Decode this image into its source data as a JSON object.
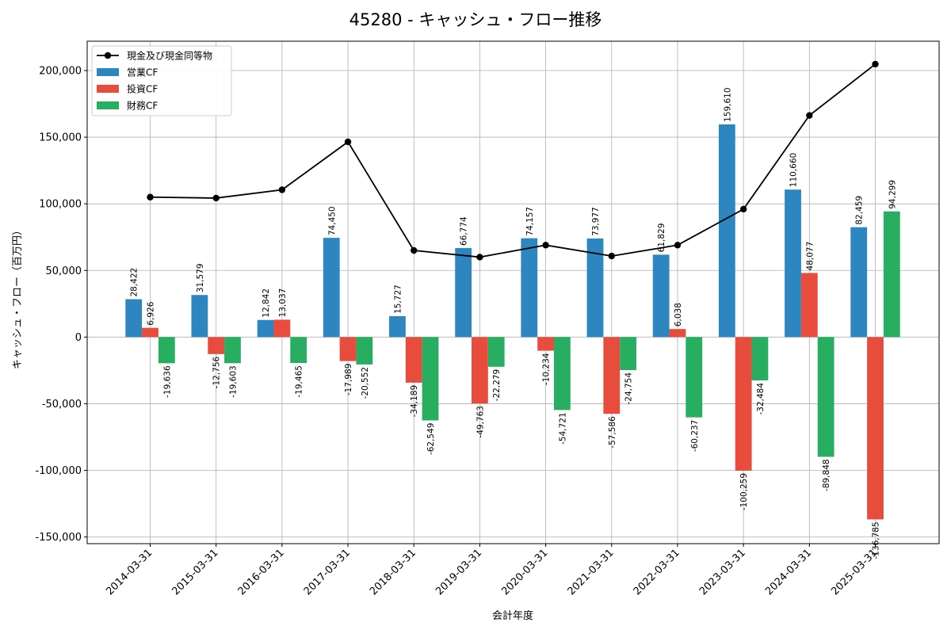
{
  "chart_data": {
    "type": "bar",
    "title": "45280 - キャッシュ・フロー推移",
    "xlabel": "会計年度",
    "ylabel": "キャッシュ・フロー（百万円）",
    "ylim": [
      -155000,
      222000
    ],
    "yticks": [
      -150000,
      -100000,
      -50000,
      0,
      50000,
      100000,
      150000,
      200000
    ],
    "ytick_labels": [
      "-150,000",
      "-100,000",
      "-50,000",
      "0",
      "50,000",
      "100,000",
      "150,000",
      "200,000"
    ],
    "grid": true,
    "legend_position": "top-left",
    "categories": [
      "2014-03-31",
      "2015-03-31",
      "2016-03-31",
      "2017-03-31",
      "2018-03-31",
      "2019-03-31",
      "2020-03-31",
      "2021-03-31",
      "2022-03-31",
      "2023-03-31",
      "2024-03-31",
      "2025-03-31"
    ],
    "series": [
      {
        "name": "営業CF",
        "type": "bar",
        "color": "#2e86c1",
        "values": [
          28422,
          31579,
          12842,
          74450,
          15727,
          66774,
          74157,
          73977,
          61829,
          159610,
          110660,
          82459
        ],
        "labels": [
          "28,422",
          "31,579",
          "12,842",
          "74,450",
          "15,727",
          "66,774",
          "74,157",
          "73,977",
          "61,829",
          "159,610",
          "110,660",
          "82,459"
        ]
      },
      {
        "name": "投資CF",
        "type": "bar",
        "color": "#e74c3c",
        "values": [
          6926,
          -12756,
          13037,
          -17989,
          -34189,
          -49763,
          -10234,
          -57586,
          6038,
          -100259,
          48077,
          -136785
        ],
        "labels": [
          "6,926",
          "-12,756",
          "13,037",
          "-17,989",
          "-34,189",
          "-49,763",
          "-10,234",
          "-57,586",
          "6,038",
          "-100,259",
          "48,077",
          "-136,785"
        ]
      },
      {
        "name": "財務CF",
        "type": "bar",
        "color": "#27ae60",
        "values": [
          -19636,
          -19603,
          -19465,
          -20552,
          -62549,
          -22279,
          -54721,
          -24754,
          -60237,
          -32484,
          -89848,
          94299
        ],
        "labels": [
          "-19,636",
          "-19,603",
          "-19,465",
          "-20,552",
          "-62,549",
          "-22,279",
          "-54,721",
          "-24,754",
          "-60,237",
          "-32,484",
          "-89,848",
          "94,299"
        ]
      },
      {
        "name": "現金及び現金同等物",
        "type": "line",
        "color": "#000000",
        "values": [
          105000,
          104300,
          110500,
          146500,
          65000,
          60000,
          69000,
          60800,
          69000,
          96000,
          166300,
          204800
        ]
      }
    ]
  }
}
